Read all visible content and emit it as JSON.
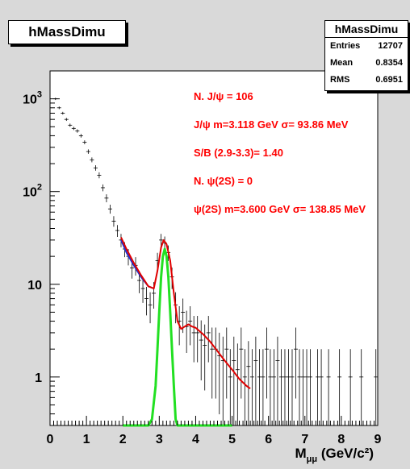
{
  "histogram_title": "hMassDimu",
  "stats": {
    "title": "hMassDimu",
    "rows": [
      {
        "label": "Entries",
        "value": "12707"
      },
      {
        "label": "Mean",
        "value": "0.8354"
      },
      {
        "label": "RMS",
        "value": "0.6951"
      }
    ]
  },
  "annotations": [
    "N. J/ψ =       106",
    "J/ψ m=3.118 GeV   σ= 93.86 MeV",
    "S/B (2.9-3.3)= 1.40",
    "N. ψ(2S) =        0",
    "ψ(2S) m=3.600 GeV   σ= 138.85 MeV"
  ],
  "colors": {
    "background": "#d9d9d9",
    "frame": "#ffffff",
    "data": "#000000",
    "fit_total": "#e00000",
    "fit_background": "#2030d0",
    "signal": "#22e022",
    "text_accent": "#ff0000"
  },
  "chart_data": {
    "type": "scatter",
    "xlabel": "M",
    "xlabel_sub": "μμ",
    "xlabel_unit": "(GeV/c²)",
    "xlim": [
      0,
      9
    ],
    "ylim": [
      0.3,
      2000
    ],
    "y_scale": "log",
    "x_tick_labels": [
      "0",
      "1",
      "2",
      "3",
      "4",
      "5",
      "6",
      "7",
      "8",
      "9"
    ],
    "y_tick_labels": [
      {
        "value": 1000,
        "base": "10",
        "exp": "3"
      },
      {
        "value": 100,
        "base": "10",
        "exp": "2"
      },
      {
        "value": 10,
        "base": "10",
        "exp": ""
      },
      {
        "value": 1,
        "base": "1",
        "exp": ""
      }
    ],
    "series": [
      {
        "style": "points",
        "x": [
          0.15,
          0.25,
          0.35,
          0.45,
          0.55,
          0.65,
          0.75,
          0.85,
          0.95,
          1.05,
          1.15,
          1.25,
          1.35,
          1.45,
          1.55,
          1.65,
          1.75,
          1.85,
          1.95,
          2.05,
          2.15,
          2.25,
          2.35,
          2.45,
          2.55,
          2.65,
          2.75,
          2.85,
          2.95,
          3.05,
          3.15,
          3.25,
          3.35,
          3.45,
          3.55,
          3.65,
          3.75,
          3.85,
          3.95,
          4.05,
          4.15,
          4.25,
          4.35,
          4.45,
          4.55,
          4.65,
          4.75,
          4.85,
          4.95,
          5.05,
          5.15,
          5.25,
          5.35,
          5.45,
          5.55,
          5.65,
          5.75,
          5.85,
          5.95,
          6.05,
          6.15,
          6.25,
          6.35,
          6.45,
          6.55,
          6.65,
          6.75,
          6.85,
          6.95,
          7.05,
          7.15,
          7.35,
          7.45,
          7.65,
          7.95,
          8.25,
          8.55,
          8.95
        ],
        "y": [
          1000,
          800,
          700,
          600,
          520,
          480,
          450,
          400,
          340,
          270,
          220,
          180,
          150,
          110,
          85,
          65,
          48,
          38,
          30,
          24,
          20,
          15,
          16,
          11,
          9,
          7,
          6,
          8,
          18,
          30,
          28,
          22,
          12,
          6,
          4,
          5,
          3.5,
          4,
          3,
          3,
          2.5,
          2.2,
          3,
          2,
          2,
          1.7,
          1.5,
          2,
          1,
          1.5,
          1.2,
          2,
          1,
          1.3,
          1,
          1.5,
          1,
          1,
          2,
          1,
          1,
          1.5,
          1,
          1,
          1,
          1,
          2,
          1,
          1,
          1,
          1,
          1,
          1,
          1,
          1,
          1,
          1,
          1
        ]
      },
      {
        "name": "fit_total",
        "style": "line",
        "x": [
          1.95,
          2.1,
          2.3,
          2.5,
          2.7,
          2.85,
          2.95,
          3.05,
          3.12,
          3.2,
          3.3,
          3.4,
          3.5,
          3.6,
          3.7,
          3.8,
          3.9,
          4.0,
          4.2,
          4.4,
          4.6,
          4.8,
          5.0,
          5.2,
          5.4,
          5.5
        ],
        "y": [
          32,
          24,
          17,
          12.5,
          9.5,
          9,
          14,
          25,
          30,
          27,
          18,
          8,
          4,
          3.3,
          3.5,
          3.7,
          3.5,
          3.4,
          2.9,
          2.4,
          1.9,
          1.5,
          1.2,
          0.95,
          0.8,
          0.75
        ]
      },
      {
        "name": "fit_background",
        "style": "line",
        "x": [
          1.95,
          2.1,
          2.3,
          2.5,
          2.7,
          2.85
        ],
        "y": [
          30,
          22,
          16,
          12,
          9.5,
          9
        ]
      },
      {
        "name": "signal",
        "style": "line",
        "x": [
          2.0,
          2.7,
          2.8,
          2.9,
          2.95,
          3.0,
          3.05,
          3.1,
          3.15,
          3.2,
          3.25,
          3.3,
          3.35,
          3.4,
          3.45,
          3.5,
          5.0
        ],
        "y": [
          0.3,
          0.3,
          0.35,
          0.8,
          2,
          5,
          12,
          20,
          24,
          20,
          12,
          5,
          2,
          0.8,
          0.35,
          0.3,
          0.3
        ]
      }
    ]
  }
}
